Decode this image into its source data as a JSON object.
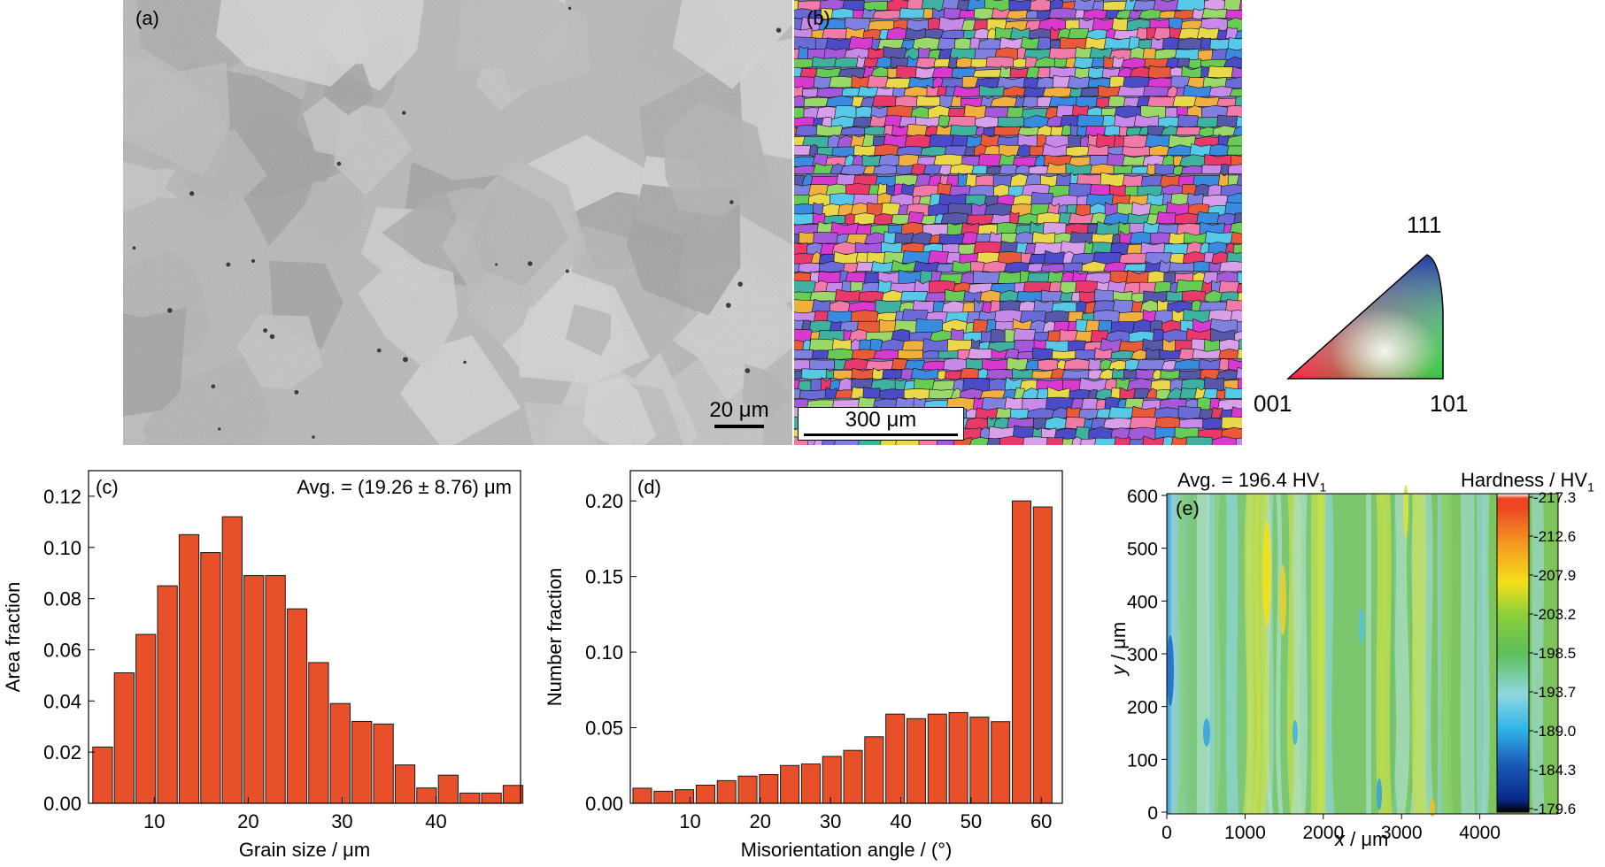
{
  "panels": {
    "a": {
      "label": "(a)",
      "scalebar": "20 μm"
    },
    "b": {
      "label": "(b)",
      "scalebar": "300 μm"
    },
    "ipf": {
      "top": "111",
      "left": "001",
      "right": "101"
    },
    "c": {
      "label": "(c)",
      "annotation": "Avg. = (19.26 ± 8.76) μm"
    },
    "d": {
      "label": "(d)"
    },
    "e": {
      "label": "(e)",
      "annotation": "Avg. = 196.4 HV",
      "annotation_sub": "1",
      "colorbar_title": "Hardness / HV",
      "colorbar_title_sub": "1",
      "colorbar_ticks": [
        "217.3",
        "212.6",
        "207.9",
        "203.2",
        "198.5",
        "193.7",
        "189.0",
        "184.3",
        "179.6"
      ],
      "xlabel_var": "x",
      "xlabel_unit": " / μm",
      "ylabel_var": "y",
      "ylabel_unit": " / μm",
      "xticks": [
        "0",
        "1000",
        "2000",
        "3000",
        "4000"
      ],
      "yticks": [
        "0",
        "100",
        "200",
        "300",
        "400",
        "500",
        "600"
      ]
    }
  },
  "chart_data": [
    {
      "type": "bar",
      "panel": "c",
      "xlabel": "Grain size / μm",
      "ylabel": "Area fraction",
      "xlim": [
        3,
        49
      ],
      "ylim": [
        0,
        0.13
      ],
      "xticks": [
        10,
        20,
        30,
        40
      ],
      "yticks": [
        0.0,
        0.02,
        0.04,
        0.06,
        0.08,
        0.1,
        0.12
      ],
      "bar_width": 2.1,
      "x": [
        4.5,
        6.8,
        9.1,
        11.4,
        13.7,
        16.0,
        18.3,
        20.6,
        22.9,
        25.2,
        27.5,
        29.8,
        32.1,
        34.4,
        36.7,
        39.0,
        41.3,
        43.6,
        45.9,
        48.2
      ],
      "values": [
        0.022,
        0.051,
        0.066,
        0.085,
        0.105,
        0.098,
        0.112,
        0.089,
        0.089,
        0.076,
        0.055,
        0.039,
        0.032,
        0.031,
        0.015,
        0.006,
        0.011,
        0.004,
        0.004,
        0.007
      ]
    },
    {
      "type": "bar",
      "panel": "d",
      "xlabel": "Misorientation angle / (°)",
      "ylabel": "Number fraction",
      "xlim": [
        1.5,
        63
      ],
      "ylim": [
        0,
        0.22
      ],
      "xticks": [
        10,
        20,
        30,
        40,
        50,
        60
      ],
      "yticks": [
        0.0,
        0.05,
        0.1,
        0.15,
        0.2
      ],
      "bar_width": 2.65,
      "x": [
        3.2,
        6.2,
        9.2,
        12.2,
        15.2,
        18.2,
        21.2,
        24.2,
        27.2,
        30.2,
        33.2,
        36.2,
        39.2,
        42.2,
        45.2,
        48.2,
        51.2,
        54.2,
        57.2,
        60.2
      ],
      "values": [
        0.01,
        0.008,
        0.009,
        0.012,
        0.015,
        0.018,
        0.019,
        0.025,
        0.026,
        0.031,
        0.035,
        0.044,
        0.059,
        0.056,
        0.059,
        0.06,
        0.057,
        0.054,
        0.2,
        0.196
      ]
    }
  ],
  "colors": {
    "bar": "#e8502a",
    "bar_edge": "#1a1a1a"
  }
}
